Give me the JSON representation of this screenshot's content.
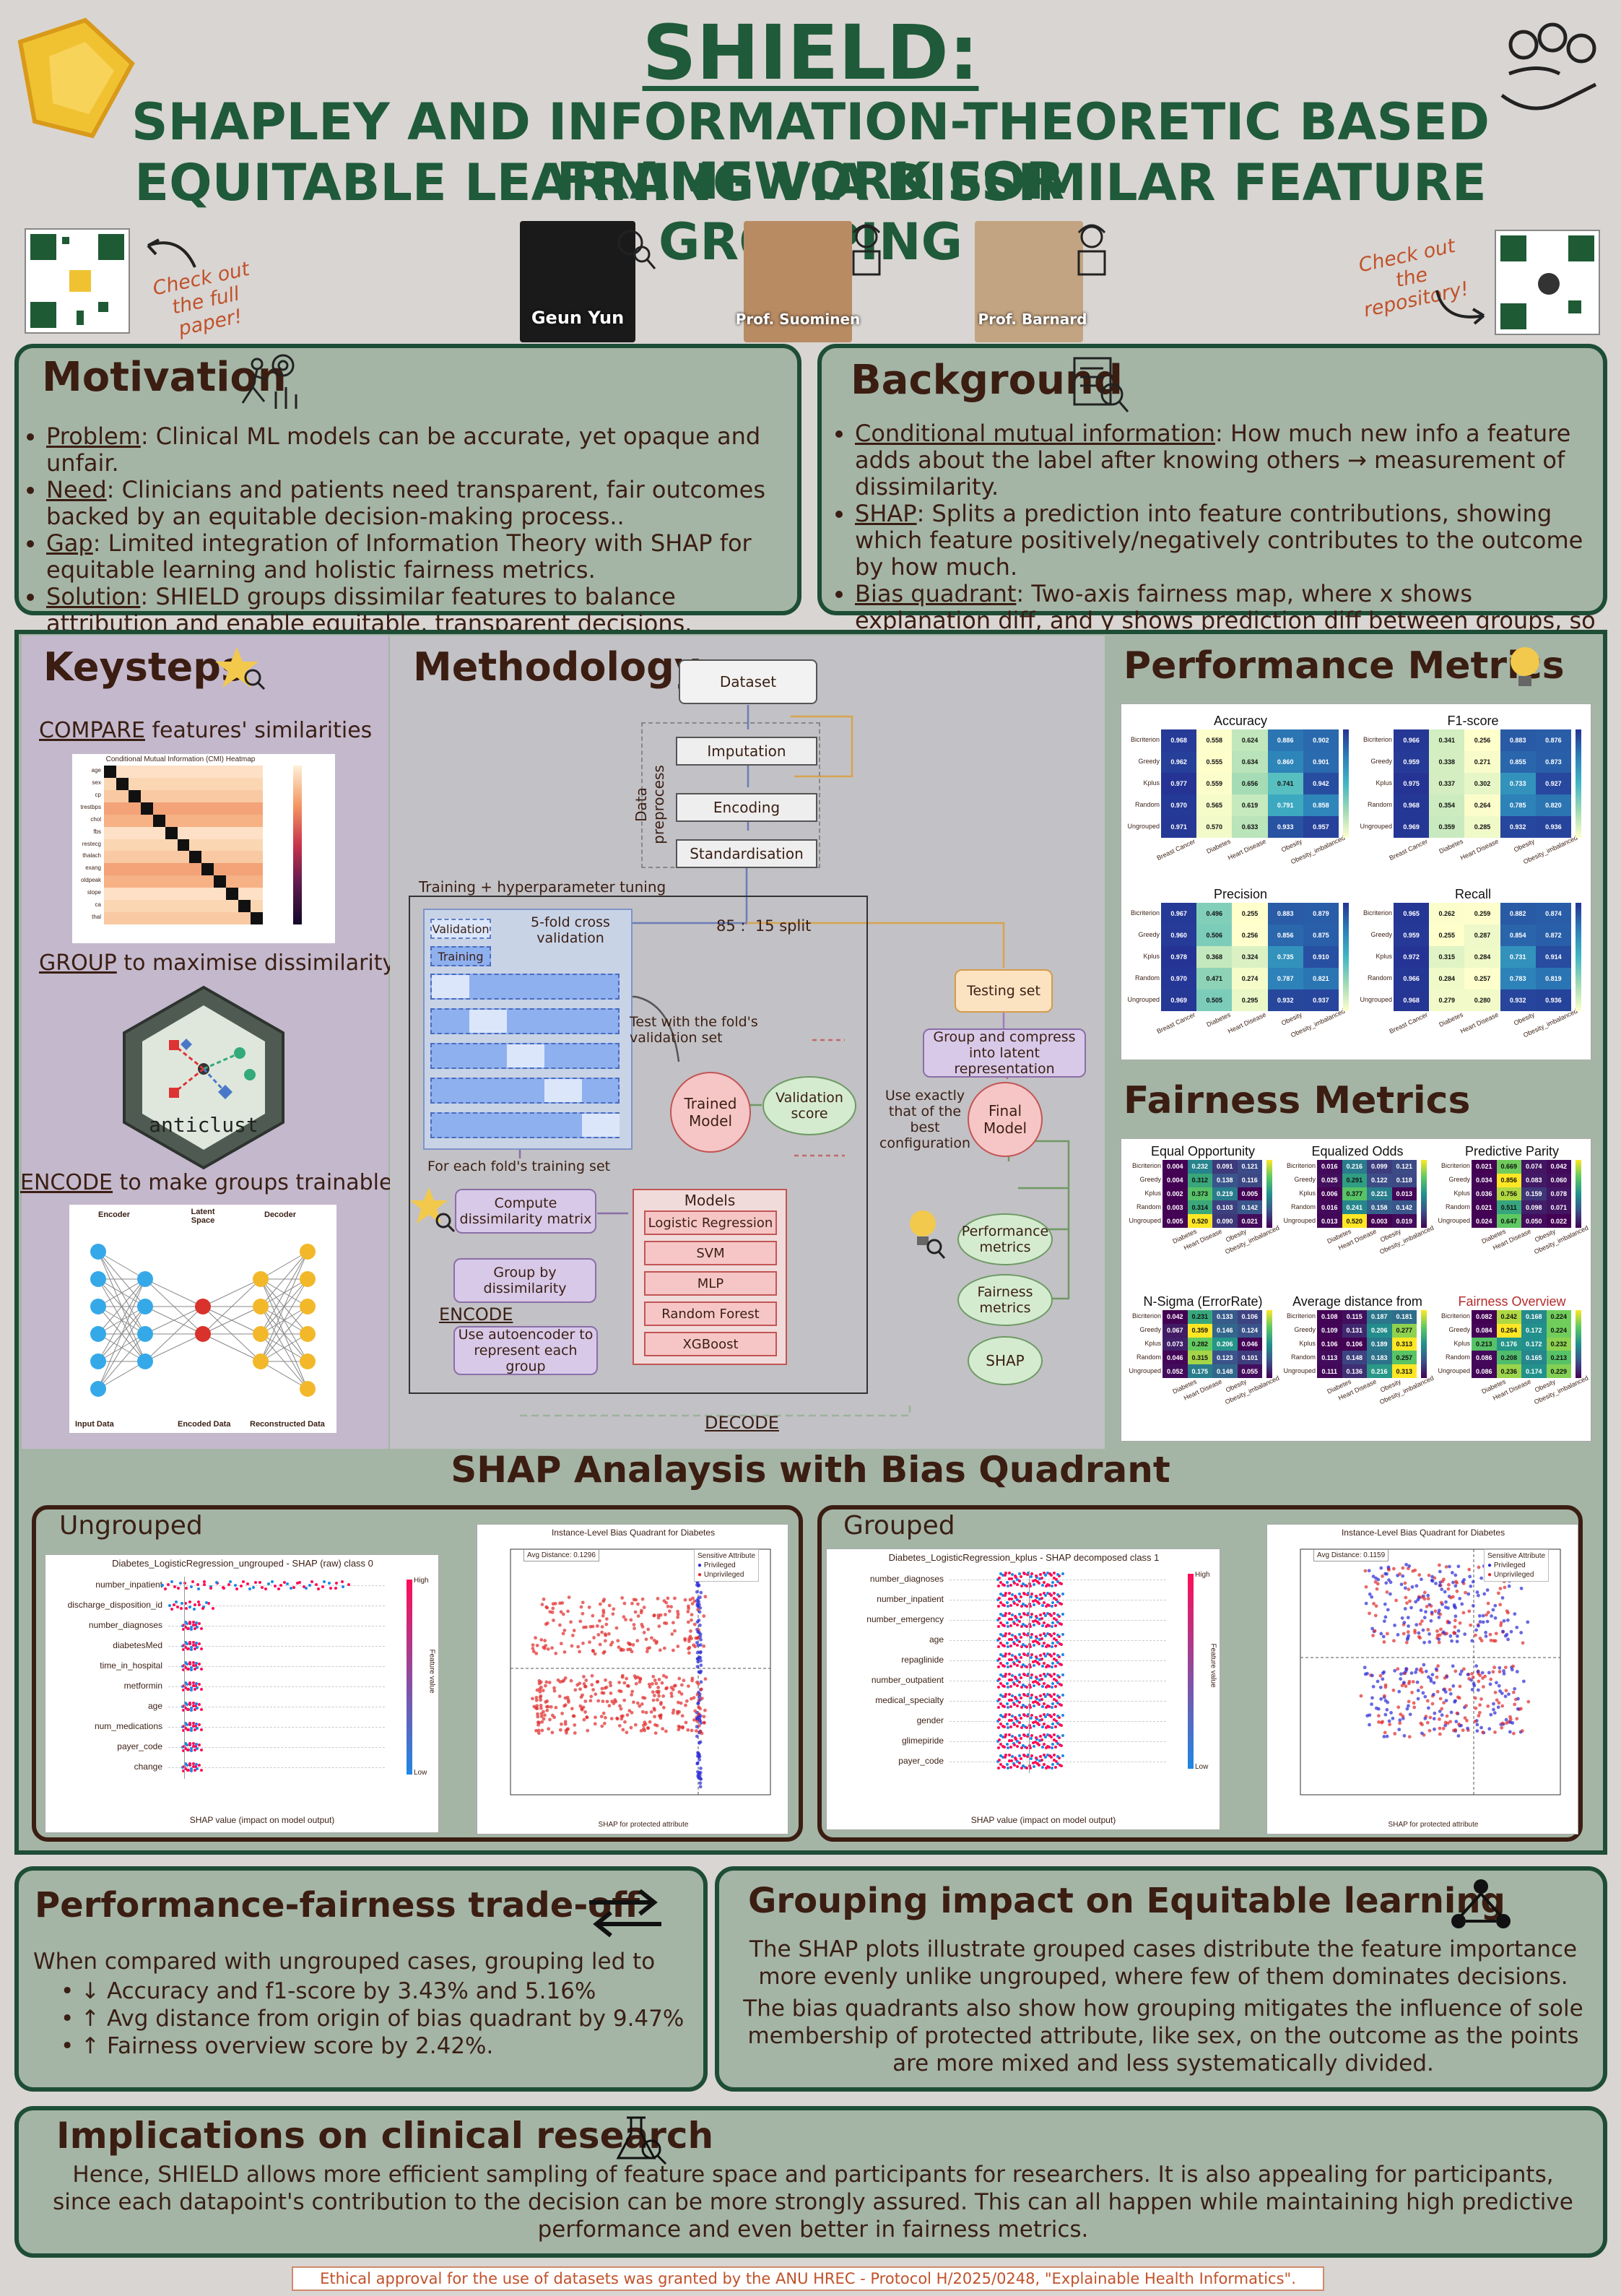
{
  "header": {
    "title": "SHIELD:",
    "subtitle_line1": "SHAPLEY AND INFORMATION-THEORETIC BASED FRAMEWORK FOR",
    "subtitle_line2": "EQUITABLE LEARNING VIA DISSIMILAR FEATURE GROUPING",
    "paper_note": "Check out the full paper!",
    "repo_note": "Check out the repository!",
    "people": [
      "Geun Yun",
      "Prof. Suominen",
      "Prof. Barnard"
    ]
  },
  "motivation": {
    "heading": "Motivation",
    "items": [
      {
        "label": "Problem",
        "text": ": Clinical ML models can be accurate, yet opaque and unfair."
      },
      {
        "label": "Need",
        "text": ": Clinicians and patients need transparent, fair outcomes backed by an equitable decision-making process.."
      },
      {
        "label": "Gap",
        "text": ": Limited integration of Information Theory with SHAP for equitable learning and holistic fairness metrics."
      },
      {
        "label": "Solution",
        "text": ": SHIELD groups dissimilar features to balance attribution and enable equitable, transparent decisions."
      }
    ]
  },
  "background": {
    "heading": "Background",
    "items": [
      {
        "label": "Conditional mutual information",
        "text": ": How much new info a feature adds about the label after knowing others → measurement of dissimilarity."
      },
      {
        "label": "SHAP",
        "text": ": Splits a prediction into feature contributions, showing which feature positively/negatively contributes to the outcome by how much."
      },
      {
        "label": "Bias quadrant",
        "text": ": Two-axis fairness map, where x shows explanation diff, and y shows prediction diff between groups, so closer to origin indicates more equal treatment."
      }
    ]
  },
  "keysteps": {
    "heading": "Keysteps",
    "compare_label": "COMPARE",
    "compare_text": " features' similarities",
    "cmi_title": "Conditional Mutual Information (CMI) Heatmap",
    "cmi_features": [
      "age",
      "sex",
      "cp",
      "trestbps",
      "chol",
      "fbs",
      "restecg",
      "thalach",
      "exang",
      "oldpeak",
      "slope",
      "ca",
      "thal"
    ],
    "group_label": "GROUP",
    "group_text": " to maximise dissimilarity",
    "anticlust": "anticlust",
    "encode_label": "ENCODE",
    "encode_text": " to make groups trainable",
    "ae_labels": [
      "Encoder",
      "Latent Space",
      "Decoder",
      "Input Data",
      "Encoded Data",
      "Reconstructed Data"
    ]
  },
  "methodology": {
    "heading": "Methodology",
    "dataset": "Dataset",
    "preprocess_label": "Data preprocess",
    "preprocess": [
      "Imputation",
      "Encoding",
      "Standardisation"
    ],
    "tuning_label": "Training + hyperparameter tuning",
    "split": "85 :  15 split",
    "cv_label": "5-fold cross validation",
    "validation": "Validation",
    "training": "Training",
    "test_fold": "Test with the fold's validation set",
    "for_each": "For each fold's training set",
    "compute": "Compute dissimilarity matrix",
    "group": "Group by dissimilarity",
    "encode": "ENCODE",
    "autoenc": "Use autoencoder to represent each group",
    "models_label": "Models",
    "models": [
      "Logistic Regression",
      "SVM",
      "MLP",
      "Random Forest",
      "XGBoost"
    ],
    "trained": "Trained Model",
    "val_score": "Validation score",
    "testing_set": "Testing set",
    "latent": "Group and compress into latent representation",
    "use_best": "Use exactly that of the best configuration",
    "final": "Final Model",
    "perf": "Performance metrics",
    "fair": "Fairness metrics",
    "shap": "SHAP",
    "decode": "DECODE"
  },
  "performance": {
    "heading": "Performance Metrics",
    "rows": [
      "Bicriterion",
      "Greedy",
      "Kplus",
      "Random",
      "Ungrouped"
    ],
    "cols": [
      "Breast Cancer",
      "Diabetes",
      "Heart Disease",
      "Obesity",
      "Obesity_imbalanced"
    ],
    "tables": [
      {
        "title": "Accuracy",
        "values": [
          [
            "0.968",
            "0.558",
            "0.624",
            "0.886",
            "0.902"
          ],
          [
            "0.962",
            "0.555",
            "0.634",
            "0.860",
            "0.901"
          ],
          [
            "0.977",
            "0.559",
            "0.656",
            "0.741",
            "0.942"
          ],
          [
            "0.970",
            "0.565",
            "0.619",
            "0.791",
            "0.858"
          ],
          [
            "0.971",
            "0.570",
            "0.633",
            "0.933",
            "0.957"
          ]
        ]
      },
      {
        "title": "F1-score",
        "values": [
          [
            "0.966",
            "0.341",
            "0.256",
            "0.883",
            "0.876"
          ],
          [
            "0.959",
            "0.338",
            "0.271",
            "0.855",
            "0.873"
          ],
          [
            "0.975",
            "0.337",
            "0.302",
            "0.733",
            "0.927"
          ],
          [
            "0.968",
            "0.354",
            "0.264",
            "0.785",
            "0.820"
          ],
          [
            "0.969",
            "0.359",
            "0.285",
            "0.932",
            "0.936"
          ]
        ]
      },
      {
        "title": "Precision",
        "values": [
          [
            "0.967",
            "0.496",
            "0.255",
            "0.883",
            "0.879"
          ],
          [
            "0.960",
            "0.506",
            "0.256",
            "0.856",
            "0.875"
          ],
          [
            "0.978",
            "0.368",
            "0.324",
            "0.735",
            "0.910"
          ],
          [
            "0.970",
            "0.471",
            "0.274",
            "0.787",
            "0.821"
          ],
          [
            "0.969",
            "0.505",
            "0.295",
            "0.932",
            "0.937"
          ]
        ]
      },
      {
        "title": "Recall",
        "values": [
          [
            "0.965",
            "0.262",
            "0.259",
            "0.882",
            "0.874"
          ],
          [
            "0.959",
            "0.255",
            "0.287",
            "0.854",
            "0.872"
          ],
          [
            "0.972",
            "0.315",
            "0.284",
            "0.731",
            "0.914"
          ],
          [
            "0.966",
            "0.284",
            "0.257",
            "0.783",
            "0.819"
          ],
          [
            "0.968",
            "0.279",
            "0.280",
            "0.932",
            "0.936"
          ]
        ]
      }
    ]
  },
  "fairness": {
    "heading": "Fairness Metrics",
    "tables": [
      {
        "title": "Equal Opportunity",
        "values": [
          [
            "0.004",
            "0.232",
            "0.091",
            "0.121"
          ],
          [
            "0.004",
            "0.312",
            "0.138",
            "0.116"
          ],
          [
            "0.002",
            "0.373",
            "0.219",
            "0.005"
          ],
          [
            "0.003",
            "0.314",
            "0.103",
            "0.142"
          ],
          [
            "0.005",
            "0.520",
            "0.090",
            "0.021"
          ]
        ]
      },
      {
        "title": "Equalized Odds",
        "values": [
          [
            "0.016",
            "0.216",
            "0.099",
            "0.121"
          ],
          [
            "0.025",
            "0.291",
            "0.122",
            "0.118"
          ],
          [
            "0.006",
            "0.377",
            "0.221",
            "0.013"
          ],
          [
            "0.016",
            "0.241",
            "0.158",
            "0.142"
          ],
          [
            "0.013",
            "0.520",
            "0.003",
            "0.019"
          ]
        ]
      },
      {
        "title": "Predictive Parity",
        "values": [
          [
            "0.021",
            "0.669",
            "0.074",
            "0.042"
          ],
          [
            "0.034",
            "0.856",
            "0.083",
            "0.060"
          ],
          [
            "0.036",
            "0.756",
            "0.159",
            "0.078"
          ],
          [
            "0.021",
            "0.511",
            "0.098",
            "0.071"
          ],
          [
            "0.024",
            "0.647",
            "0.050",
            "0.022"
          ]
        ]
      },
      {
        "title": "N-Sigma (ErrorRate)",
        "values": [
          [
            "0.042",
            "0.231",
            "0.133",
            "0.106"
          ],
          [
            "0.067",
            "0.359",
            "0.146",
            "0.124"
          ],
          [
            "0.073",
            "0.282",
            "0.206",
            "0.046"
          ],
          [
            "0.046",
            "0.315",
            "0.123",
            "0.101"
          ],
          [
            "0.052",
            "0.175",
            "0.148",
            "0.055"
          ]
        ]
      },
      {
        "title": "Average distance from origin",
        "values": [
          [
            "0.108",
            "0.115",
            "0.187",
            "0.181"
          ],
          [
            "0.109",
            "0.131",
            "0.206",
            "0.277"
          ],
          [
            "0.106",
            "0.106",
            "0.189",
            "0.313"
          ],
          [
            "0.113",
            "0.148",
            "0.183",
            "0.257"
          ],
          [
            "0.111",
            "0.136",
            "0.216",
            "0.313"
          ]
        ]
      },
      {
        "title": "Fairness Overview",
        "values": [
          [
            "0.082",
            "0.242",
            "0.168",
            "0.224"
          ],
          [
            "0.084",
            "0.264",
            "0.172",
            "0.224"
          ],
          [
            "0.213",
            "0.176",
            "0.172",
            "0.232"
          ],
          [
            "0.086",
            "0.208",
            "0.165",
            "0.213"
          ],
          [
            "0.086",
            "0.236",
            "0.174",
            "0.229"
          ]
        ]
      }
    ]
  },
  "shap_section": {
    "heading": "SHAP Analaysis with Bias Quadrant",
    "ungrouped": {
      "label": "Ungrouped",
      "shap_title": "Diabetes_LogisticRegression_ungrouped - SHAP (raw) class 0",
      "features": [
        "number_inpatient",
        "discharge_disposition_id",
        "number_diagnoses",
        "diabetesMed",
        "time_in_hospital",
        "metformin",
        "age",
        "num_medications",
        "payer_code",
        "change"
      ],
      "xlabel": "SHAP value (impact on model output)",
      "bq_title": "Instance-Level Bias Quadrant for Diabetes",
      "avg": "Avg Distance: 0.1296",
      "bq_xlabel": "SHAP for protected attribute"
    },
    "grouped": {
      "label": "Grouped",
      "shap_title": "Diabetes_LogisticRegression_kplus - SHAP decomposed class 1",
      "features": [
        "number_diagnoses",
        "number_inpatient",
        "number_emergency",
        "age",
        "repaglinide",
        "number_outpatient",
        "medical_specialty",
        "gender",
        "glimepiride",
        "payer_code"
      ],
      "xlabel": "SHAP value (impact on model output)",
      "bq_title": "Instance-Level Bias Quadrant for Diabetes",
      "avg": "Avg Distance: 0.1159",
      "bq_xlabel": "SHAP for protected attribute"
    },
    "legend_title": "Sensitive Attribute",
    "legend_priv": "Privileged",
    "legend_unpriv": "Unprivileged",
    "feature_value": "Feature value",
    "high": "High",
    "low": "Low"
  },
  "tradeoff": {
    "heading": "Performance-fairness trade-off",
    "intro": "When compared with ungrouped cases, grouping led to",
    "items": [
      "↓ Accuracy and f1-score by 3.43% and 5.16%",
      "↑ Avg distance from origin of bias quadrant by 9.47%",
      "↑ Fairness overview score by 2.42%."
    ]
  },
  "grouping_impact": {
    "heading": "Grouping impact on Equitable learning",
    "p1": "The SHAP plots illustrate grouped cases distribute the feature importance more evenly unlike ungrouped, where few of them dominates decisions.",
    "p2": "The bias quadrants also show how grouping mitigates the influence of sole membership of protected attribute, like sex, on the outcome as the points are more mixed and less systematically divided."
  },
  "implications": {
    "heading": "Implications on clinical research",
    "text": "Hence, SHIELD allows more efficient sampling of feature space and participants for researchers. It is also appealing for participants, since each datapoint's contribution to the decision can be more strongly assured. This can all happen while maintaining high predictive performance and even better in fairness metrics."
  },
  "footer": "Ethical approval for the use of datasets was granted by the ANU HREC - Protocol H/2025/0248, \"Explainable Health Informatics\"."
}
